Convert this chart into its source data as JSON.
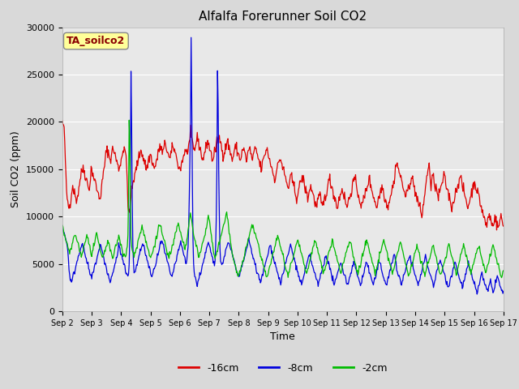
{
  "title": "Alfalfa Forerunner Soil CO2",
  "xlabel": "Time",
  "ylabel": "Soil CO2 (ppm)",
  "ylim": [
    0,
    30000
  ],
  "yticks": [
    0,
    5000,
    10000,
    15000,
    20000,
    25000,
    30000
  ],
  "xtick_labels": [
    "Sep 2",
    "Sep 3",
    "Sep 4",
    "Sep 5",
    "Sep 6",
    "Sep 7",
    "Sep 8",
    "Sep 9",
    "Sep 10",
    "Sep 11",
    "Sep 12",
    "Sep 13",
    "Sep 14",
    "Sep 15",
    "Sep 16",
    "Sep 17"
  ],
  "series_colors": [
    "#dd0000",
    "#0000dd",
    "#00bb00"
  ],
  "series_labels": [
    "-16cm",
    "-8cm",
    "-2cm"
  ],
  "legend_label": "TA_soilco2",
  "fig_bg_color": "#d9d9d9",
  "plot_bg_color": "#e8e8e8",
  "grid_color": "#ffffff"
}
